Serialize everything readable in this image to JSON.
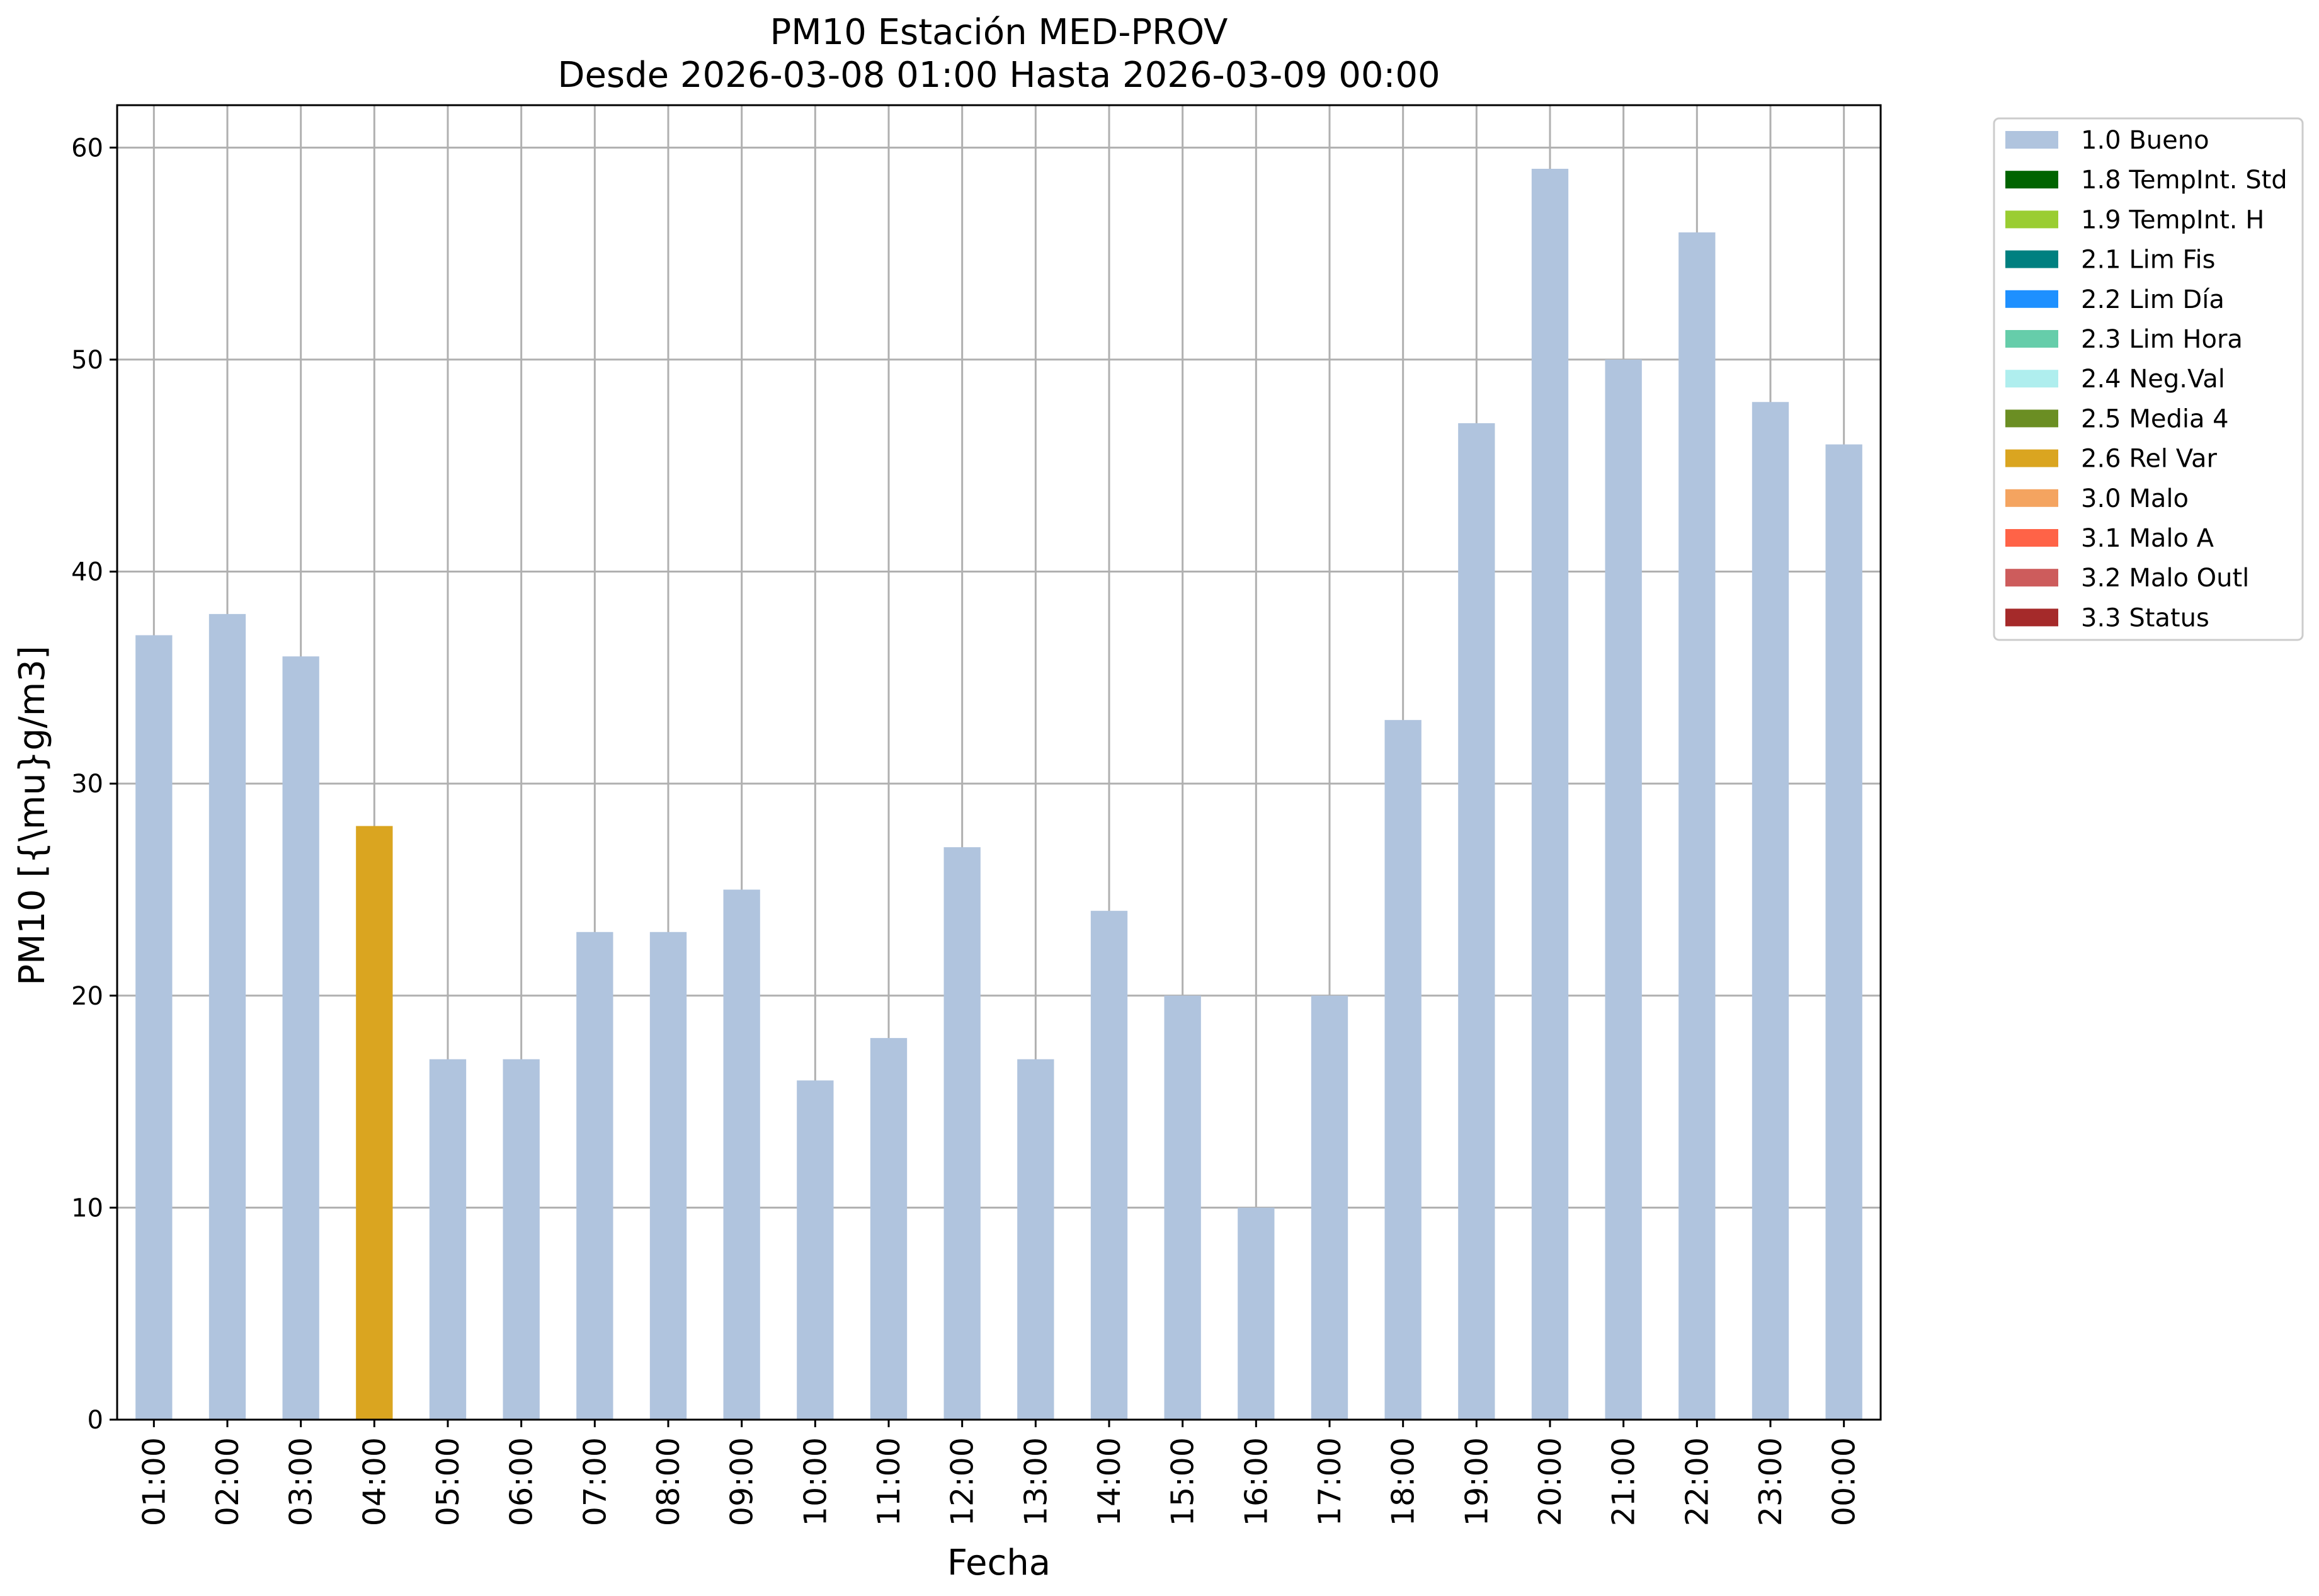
{
  "chart_data": {
    "type": "bar",
    "title": "PM10 Estación MED-PROV",
    "subtitle": "Desde 2026-03-08 01:00 Hasta 2026-03-09 00:00",
    "xlabel": "Fecha",
    "ylabel": "PM10 [{\\mu}g/m3]",
    "ylim": [
      0,
      62
    ],
    "yticks": [
      0,
      10,
      20,
      30,
      40,
      50,
      60
    ],
    "grid": true,
    "legend_position": "outside-top-right",
    "categories": [
      "01:00",
      "02:00",
      "03:00",
      "04:00",
      "05:00",
      "06:00",
      "07:00",
      "08:00",
      "09:00",
      "10:00",
      "11:00",
      "12:00",
      "13:00",
      "14:00",
      "15:00",
      "16:00",
      "17:00",
      "18:00",
      "19:00",
      "20:00",
      "21:00",
      "22:00",
      "23:00",
      "00:00"
    ],
    "values": [
      37,
      38,
      36,
      28,
      17,
      17,
      23,
      23,
      25,
      16,
      18,
      27,
      17,
      24,
      20,
      10,
      20,
      33,
      47,
      59,
      50,
      56,
      48,
      46
    ],
    "flags": [
      "1.0 Bueno",
      "1.0 Bueno",
      "1.0 Bueno",
      "2.6 Rel Var",
      "1.0 Bueno",
      "1.0 Bueno",
      "1.0 Bueno",
      "1.0 Bueno",
      "1.0 Bueno",
      "1.0 Bueno",
      "1.0 Bueno",
      "1.0 Bueno",
      "1.0 Bueno",
      "1.0 Bueno",
      "1.0 Bueno",
      "1.0 Bueno",
      "1.0 Bueno",
      "1.0 Bueno",
      "1.0 Bueno",
      "1.0 Bueno",
      "1.0 Bueno",
      "1.0 Bueno",
      "1.0 Bueno",
      "1.0 Bueno"
    ],
    "legend": [
      {
        "name": "1.0 Bueno",
        "color": "#b0c4de"
      },
      {
        "name": "1.8 TempInt. Std",
        "color": "#006400"
      },
      {
        "name": "1.9 TempInt. H",
        "color": "#9acd32"
      },
      {
        "name": "2.1 Lim Fis",
        "color": "#008080"
      },
      {
        "name": "2.2 Lim Día",
        "color": "#1e90ff"
      },
      {
        "name": "2.3 Lim Hora",
        "color": "#66cdaa"
      },
      {
        "name": "2.4 Neg.Val",
        "color": "#afeeee"
      },
      {
        "name": "2.5 Media 4",
        "color": "#6b8e23"
      },
      {
        "name": "2.6 Rel Var",
        "color": "#daa520"
      },
      {
        "name": "3.0 Malo",
        "color": "#f4a460"
      },
      {
        "name": "3.1 Malo A",
        "color": "#ff6347"
      },
      {
        "name": "3.2 Malo Outl",
        "color": "#cd5c5c"
      },
      {
        "name": "3.3 Status",
        "color": "#a52a2a"
      }
    ]
  }
}
